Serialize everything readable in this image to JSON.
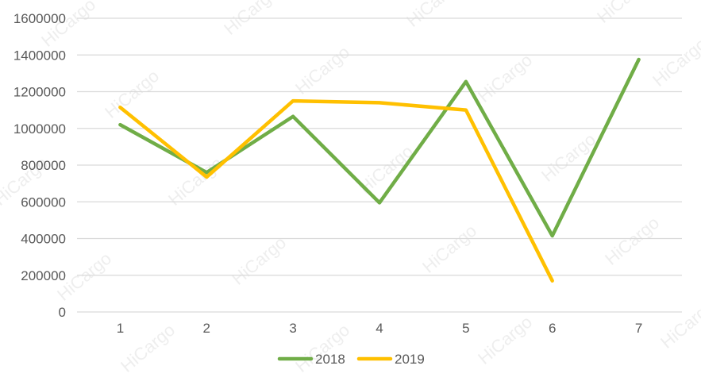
{
  "chart_data": {
    "type": "line",
    "x": [
      1,
      2,
      3,
      4,
      5,
      6,
      7
    ],
    "series": [
      {
        "name": "2018",
        "color": "#70AD47",
        "values": [
          1020000,
          760000,
          1065000,
          595000,
          1255000,
          415000,
          1375000
        ]
      },
      {
        "name": "2019",
        "color": "#FFC000",
        "values": [
          1115000,
          735000,
          1150000,
          1140000,
          1100000,
          170000,
          null
        ]
      }
    ],
    "y_ticks": [
      0,
      200000,
      400000,
      600000,
      800000,
      1000000,
      1200000,
      1400000,
      1600000
    ],
    "ylim": [
      0,
      1600000
    ],
    "grid": true,
    "legend_position": "bottom",
    "title": "",
    "xlabel": "",
    "ylabel": ""
  },
  "watermark_text": "HiCargo"
}
